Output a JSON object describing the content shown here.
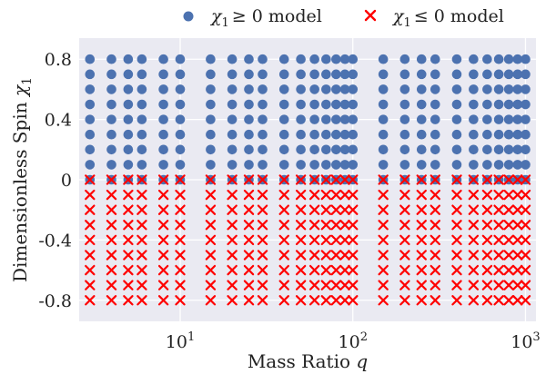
{
  "chart_data": {
    "type": "scatter",
    "xscale": "log",
    "xlim": [
      2.6,
      1150
    ],
    "ylim": [
      -0.94,
      0.94
    ],
    "xticks": [
      {
        "value": 10,
        "base": "10",
        "exp": "1"
      },
      {
        "value": 100,
        "base": "10",
        "exp": "2"
      },
      {
        "value": 1000,
        "base": "10",
        "exp": "3"
      }
    ],
    "yticks": [
      {
        "value": 0.8,
        "label": "0.8"
      },
      {
        "value": 0.4,
        "label": "0.4"
      },
      {
        "value": 0,
        "label": "0"
      },
      {
        "value": -0.4,
        "label": "-0.4"
      },
      {
        "value": -0.8,
        "label": "-0.8"
      }
    ],
    "xlabel": {
      "text": "Mass Ratio ",
      "var": "q"
    },
    "ylabel": {
      "text": "Dimensionless Spin ",
      "var": "χ",
      "sub": "1"
    },
    "grid": true,
    "legend_position": "top",
    "q_values": [
      3,
      4,
      5,
      6,
      8,
      10,
      15,
      20,
      25,
      30,
      40,
      50,
      60,
      70,
      80,
      90,
      100,
      150,
      200,
      250,
      300,
      400,
      500,
      600,
      700,
      800,
      900,
      1000
    ],
    "series": [
      {
        "name_var": "χ",
        "name_sub": "1",
        "name_rest": "≥ 0 model",
        "marker": "circle",
        "color": "#4c72b0",
        "spin_values": [
          0,
          0.1,
          0.2,
          0.3,
          0.4,
          0.5,
          0.6,
          0.7,
          0.8
        ]
      },
      {
        "name_var": "χ",
        "name_sub": "1",
        "name_rest": "≤ 0 model",
        "marker": "x",
        "color": "#ff0000",
        "spin_values": [
          0,
          -0.1,
          -0.2,
          -0.3,
          -0.4,
          -0.5,
          -0.6,
          -0.7,
          -0.8
        ]
      }
    ]
  },
  "colors": {
    "plot_bg": "#eaeaf2",
    "grid": "#ffffff"
  }
}
